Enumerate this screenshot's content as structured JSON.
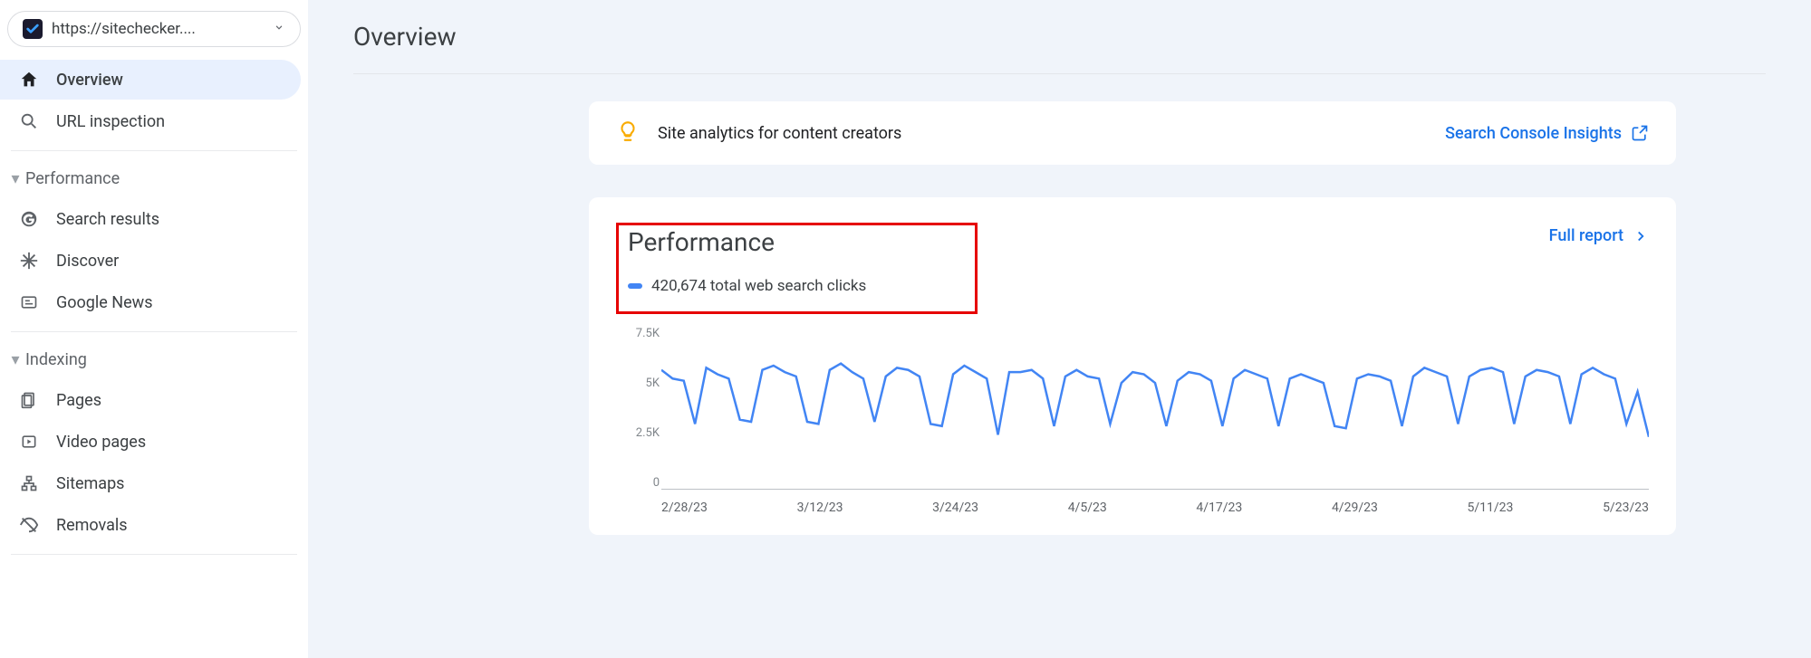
{
  "site_selector": {
    "url": "https://sitechecker...."
  },
  "sidebar": {
    "items_top": [
      {
        "label": "Overview",
        "icon": "home",
        "active": true
      },
      {
        "label": "URL inspection",
        "icon": "search",
        "active": false
      }
    ],
    "section_performance": {
      "label": "Performance"
    },
    "items_performance": [
      {
        "label": "Search results",
        "icon": "google"
      },
      {
        "label": "Discover",
        "icon": "asterisk"
      },
      {
        "label": "Google News",
        "icon": "news"
      }
    ],
    "section_indexing": {
      "label": "Indexing"
    },
    "items_indexing": [
      {
        "label": "Pages",
        "icon": "pages"
      },
      {
        "label": "Video pages",
        "icon": "video"
      },
      {
        "label": "Sitemaps",
        "icon": "sitemap"
      },
      {
        "label": "Removals",
        "icon": "removals"
      }
    ]
  },
  "page": {
    "title": "Overview"
  },
  "insights_card": {
    "text": "Site analytics for content creators",
    "link_label": "Search Console Insights"
  },
  "performance_card": {
    "title": "Performance",
    "metric_label": "420,674 total web search clicks",
    "full_report_label": "Full report",
    "highlight_color": "#e60000",
    "chart": {
      "type": "line",
      "line_color": "#4285f4",
      "line_width": 2.5,
      "background": "#ffffff",
      "axis_color": "#bdc1c6",
      "tick_font_size": 13,
      "tick_color": "#80868b",
      "y_ticks": [
        "7.5K",
        "5K",
        "2.5K",
        "0"
      ],
      "ylim": [
        0,
        7500
      ],
      "x_labels": [
        "2/28/23",
        "3/12/23",
        "3/24/23",
        "4/5/23",
        "4/17/23",
        "4/29/23",
        "5/11/23",
        "5/23/23"
      ],
      "values": [
        5500,
        5100,
        5000,
        3000,
        5600,
        5300,
        5100,
        3200,
        3100,
        5500,
        5700,
        5400,
        5200,
        3100,
        3000,
        5500,
        5800,
        5400,
        5100,
        3100,
        5200,
        5600,
        5500,
        5200,
        3000,
        2900,
        5300,
        5700,
        5400,
        5100,
        2500,
        5400,
        5400,
        5500,
        5100,
        2900,
        5200,
        5500,
        5200,
        5100,
        3000,
        4900,
        5400,
        5300,
        4900,
        2900,
        5000,
        5400,
        5300,
        5000,
        2900,
        5100,
        5500,
        5300,
        5100,
        2900,
        5100,
        5300,
        5100,
        4900,
        2900,
        2800,
        5100,
        5300,
        5200,
        5000,
        2900,
        5200,
        5600,
        5400,
        5200,
        3000,
        5200,
        5500,
        5600,
        5400,
        3000,
        5200,
        5500,
        5400,
        5200,
        3000,
        5300,
        5600,
        5300,
        5100,
        3000,
        4500,
        2400
      ]
    }
  }
}
